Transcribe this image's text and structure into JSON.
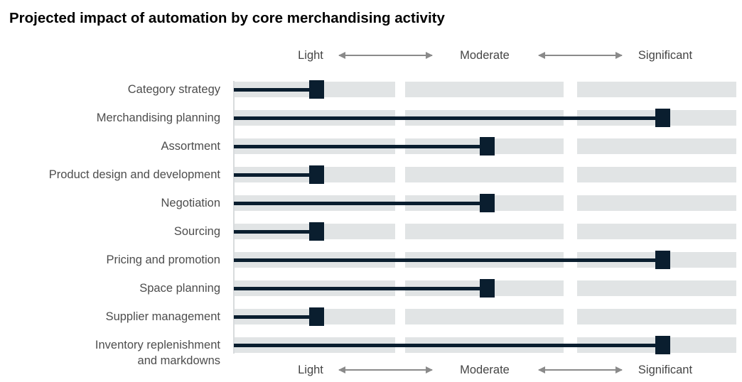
{
  "title": "Projected impact of automation by core merchandising activity",
  "scale": {
    "labels": [
      "Light",
      "Moderate",
      "Significant"
    ]
  },
  "rows": [
    {
      "label": "Category strategy",
      "level": "Light"
    },
    {
      "label": "Merchandising planning",
      "level": "Significant"
    },
    {
      "label": "Assortment",
      "level": "Moderate"
    },
    {
      "label": "Product design and development",
      "level": "Light"
    },
    {
      "label": "Negotiation",
      "level": "Moderate"
    },
    {
      "label": "Sourcing",
      "level": "Light"
    },
    {
      "label": "Pricing and promotion",
      "level": "Significant"
    },
    {
      "label": "Space planning",
      "level": "Moderate"
    },
    {
      "label": "Supplier management",
      "level": "Light"
    },
    {
      "label": "Inventory replenishment\nand markdowns",
      "level": "Significant"
    }
  ],
  "chart_data": {
    "type": "scatter",
    "variant": "dot-plot-with-stems",
    "title": "Projected impact of automation by core merchandising activity",
    "categories": [
      "Category strategy",
      "Merchandising planning",
      "Assortment",
      "Product design and development",
      "Negotiation",
      "Sourcing",
      "Pricing and promotion",
      "Space planning",
      "Supplier management",
      "Inventory replenishment and markdowns"
    ],
    "values": [
      "Light",
      "Significant",
      "Moderate",
      "Light",
      "Moderate",
      "Light",
      "Significant",
      "Moderate",
      "Light",
      "Significant"
    ],
    "numeric_values": [
      1,
      3,
      2,
      1,
      2,
      1,
      3,
      2,
      1,
      3
    ],
    "value_scale": {
      "1": "Light",
      "2": "Moderate",
      "3": "Significant"
    },
    "x_axis": {
      "labels": [
        "Light",
        "Moderate",
        "Significant"
      ],
      "position": "top and bottom",
      "type": "ordinal"
    },
    "ylabel": "",
    "xlabel": "",
    "legend": "none",
    "grid": "off"
  },
  "colors": {
    "navy": "#0a1e2f",
    "band": "#e1e4e5",
    "label_gray": "#4d4d4d",
    "arrow_gray": "#8a8a8a",
    "axis_gray": "#d8dbdd",
    "title_color": "#000000",
    "bg": "#ffffff"
  }
}
